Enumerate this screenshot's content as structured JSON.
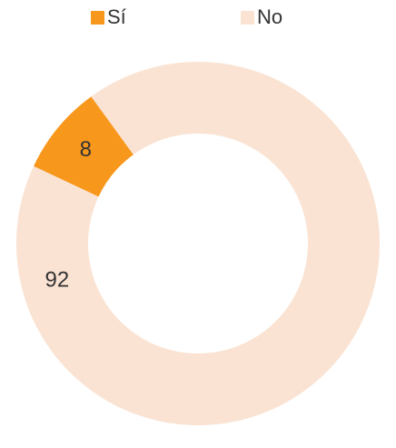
{
  "chart_data": {
    "type": "donut",
    "categories": [
      "Sí",
      "No"
    ],
    "values": [
      8,
      92
    ],
    "colors": [
      "#f7981d",
      "#fae3d3"
    ],
    "legend": "top"
  }
}
